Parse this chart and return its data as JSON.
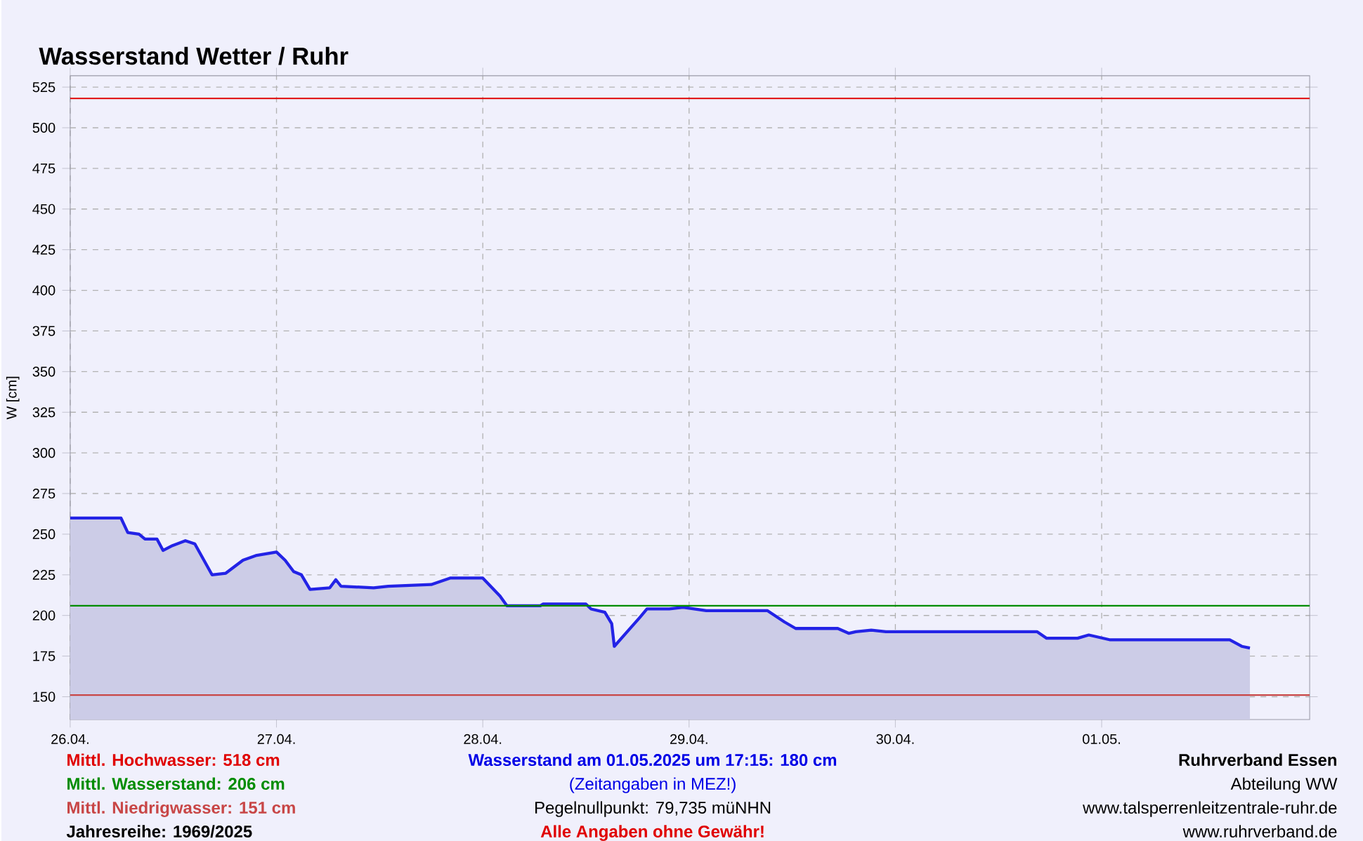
{
  "chart_data": {
    "type": "area",
    "title": "Wasserstand Wetter / Ruhr",
    "ylabel": "W [cm]",
    "series": [
      {
        "color": "#2323e6",
        "x": [
          "2025-04-26T00:00",
          "2025-04-26T05:54",
          "2025-04-26T06:42",
          "2025-04-26T08:00",
          "2025-04-26T08:42",
          "2025-04-26T10:06",
          "2025-04-26T10:48",
          "2025-04-26T11:54",
          "2025-04-26T13:24",
          "2025-04-26T14:30",
          "2025-04-26T16:30",
          "2025-04-26T18:06",
          "2025-04-26T20:06",
          "2025-04-26T21:42",
          "2025-04-27T00:00",
          "2025-04-27T01:00",
          "2025-04-27T02:00",
          "2025-04-27T02:54",
          "2025-04-27T03:54",
          "2025-04-27T06:12",
          "2025-04-27T06:54",
          "2025-04-27T07:30",
          "2025-04-27T11:18",
          "2025-04-27T13:00",
          "2025-04-27T18:00",
          "2025-04-27T20:12",
          "2025-04-28T00:00",
          "2025-04-28T02:00",
          "2025-04-28T02:48",
          "2025-04-28T06:42",
          "2025-04-28T07:00",
          "2025-04-28T12:00",
          "2025-04-28T12:36",
          "2025-04-28T14:12",
          "2025-04-28T15:00",
          "2025-04-28T15:18",
          "2025-04-28T16:48",
          "2025-04-28T18:18",
          "2025-04-28T19:06",
          "2025-04-28T21:42",
          "2025-04-28T23:18",
          "2025-04-29T02:00",
          "2025-04-29T09:06",
          "2025-04-29T11:06",
          "2025-04-29T12:24",
          "2025-04-29T17:18",
          "2025-04-29T18:36",
          "2025-04-29T19:24",
          "2025-04-29T21:12",
          "2025-04-29T22:54",
          "2025-04-30T16:30",
          "2025-04-30T17:36",
          "2025-04-30T21:12",
          "2025-04-30T22:30",
          "2025-05-01T01:00",
          "2025-05-01T14:54",
          "2025-05-01T16:18",
          "2025-05-01T17:15"
        ],
        "values": [
          260,
          260,
          251,
          250,
          247,
          247,
          240,
          243,
          246,
          244,
          225,
          226,
          234,
          237,
          239,
          234,
          227,
          225,
          216,
          217,
          222,
          218,
          217,
          218,
          219,
          223,
          223,
          212,
          206,
          206,
          207,
          207,
          204,
          202,
          195,
          181,
          190,
          199,
          204,
          204,
          205,
          203,
          203,
          196,
          192,
          192,
          189,
          190,
          191,
          190,
          190,
          186,
          186,
          188,
          185,
          185,
          181,
          180
        ]
      }
    ],
    "xlim": [
      "2025-04-26T00:00",
      "2025-05-02T00:12"
    ],
    "ylim": [
      136,
      532
    ],
    "xticks": [
      {
        "value": "2025-04-26",
        "label": "26.04."
      },
      {
        "value": "2025-04-27",
        "label": "27.04."
      },
      {
        "value": "2025-04-28",
        "label": "28.04."
      },
      {
        "value": "2025-04-29",
        "label": "29.04."
      },
      {
        "value": "2025-04-30",
        "label": "30.04."
      },
      {
        "value": "2025-05-01",
        "label": "01.05."
      }
    ],
    "yticks": [
      150,
      175,
      200,
      225,
      250,
      275,
      300,
      325,
      350,
      375,
      400,
      425,
      450,
      475,
      500,
      525
    ],
    "grid": true,
    "marker": "none",
    "line_style": "solid",
    "ref_lines": [
      {
        "axis": "y",
        "value": 518,
        "color": "#e00000"
      },
      {
        "axis": "y",
        "value": 206,
        "color": "#008c00"
      },
      {
        "axis": "y",
        "value": 151,
        "color": "#c84646"
      }
    ],
    "annotations": [
      "Mittl. Hochwasser: 518 cm",
      "Mittl. Wasserstand: 206 cm",
      "Mittl. Niedrigwasser: 151 cm",
      "Jahresreihe: 1969/2025",
      "Wasserstand am 01.05.2025 um 17:15: 180 cm",
      "(Zeitangaben in MEZ!)",
      "Pegelnullpunkt: 79,735 müNHN",
      "Alle Angaben ohne Gewähr!",
      "Ruhrverband Essen",
      "Abteilung WW",
      "www.talsperrenleitzentrale-ruhr.de",
      "www.ruhrverband.de"
    ]
  }
}
